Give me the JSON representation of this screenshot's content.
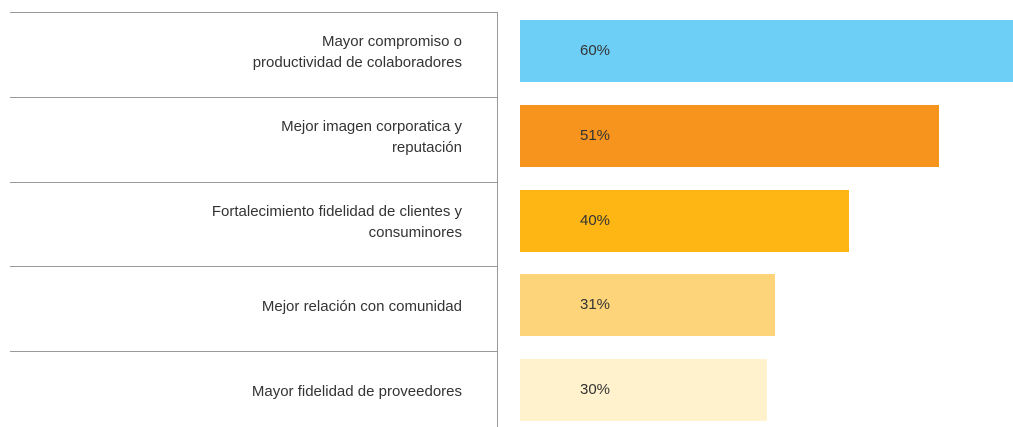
{
  "chart_data": {
    "type": "bar",
    "orientation": "horizontal",
    "categories": [
      "Mayor compromiso o\nproductividad  de colaboradores",
      "Mejor imagen corporatica y\nreputación",
      "Fortalecimiento fidelidad de clientes y\nconsuminores",
      "Mejor relación con comunidad",
      "Mayor fidelidad de proveedores"
    ],
    "values": [
      60,
      51,
      40,
      31,
      30
    ],
    "value_labels": [
      "60%",
      "51%",
      "40%",
      "31%",
      "30%"
    ],
    "colors": [
      "#6dcff6",
      "#f7941d",
      "#fdb614",
      "#fed47a",
      "#fff2cc"
    ]
  }
}
